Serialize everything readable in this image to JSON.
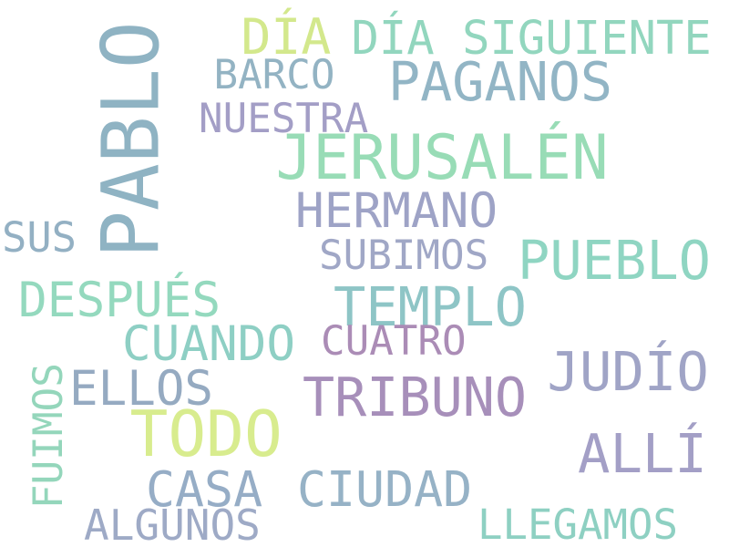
{
  "words": [
    {
      "text": "PABLO",
      "color": "#8fb3c3"
    },
    {
      "text": "DÍA",
      "color": "#d3e88c"
    },
    {
      "text": "DÍA SIGUIENTE",
      "color": "#92d6be"
    },
    {
      "text": "BARCO",
      "color": "#93b3c3"
    },
    {
      "text": "PAGANOS",
      "color": "#92b5c5"
    },
    {
      "text": "NUESTRA",
      "color": "#a39ec6"
    },
    {
      "text": "JERUSALÉN",
      "color": "#98dcb6"
    },
    {
      "text": "HERMANO",
      "color": "#9ea3c6"
    },
    {
      "text": "SUS",
      "color": "#93b0c3"
    },
    {
      "text": "SUBIMOS",
      "color": "#a0a7c6"
    },
    {
      "text": "PUEBLO",
      "color": "#8fd5c2"
    },
    {
      "text": "DESPUÉS",
      "color": "#94d9be"
    },
    {
      "text": "TEMPLO",
      "color": "#8ec5c6"
    },
    {
      "text": "CUANDO",
      "color": "#8ecfc4"
    },
    {
      "text": "CUATRO",
      "color": "#ab8cb6"
    },
    {
      "text": "JUDÍO",
      "color": "#a0a4c6"
    },
    {
      "text": "FUIMOS",
      "color": "#94d6bb"
    },
    {
      "text": "ELLOS",
      "color": "#95aac1"
    },
    {
      "text": "TRIBUNO",
      "color": "#a78fba"
    },
    {
      "text": "TODO",
      "color": "#d8ec8e"
    },
    {
      "text": "ALLÍ",
      "color": "#a39fc6"
    },
    {
      "text": "CASA",
      "color": "#96adc6"
    },
    {
      "text": "CIUDAD",
      "color": "#96b2c6"
    },
    {
      "text": "ALGUNOS",
      "color": "#9eaac6"
    },
    {
      "text": "LLEGAMOS",
      "color": "#8ed0c2"
    }
  ]
}
